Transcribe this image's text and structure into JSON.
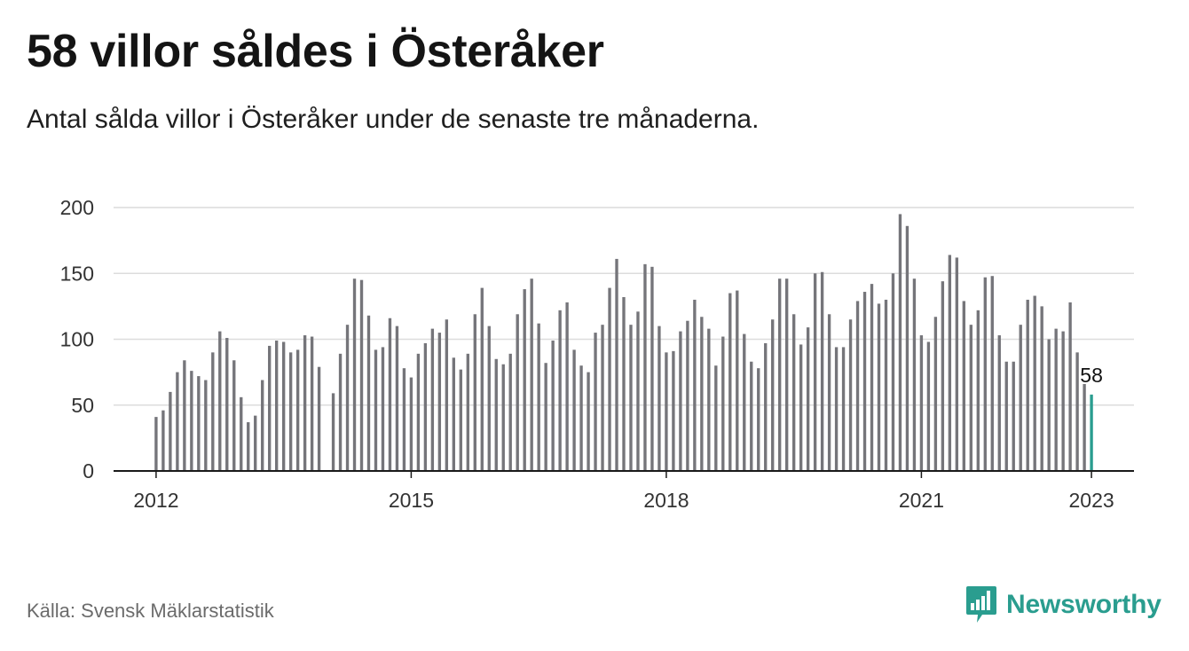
{
  "title": "58 villor såldes i Österåker",
  "subtitle": "Antal sålda villor i Österåker under de senaste tre månaderna.",
  "source": "Källa: Svensk Mäklarstatistik",
  "brand": {
    "name": "Newsworthy",
    "color": "#2a9d8f",
    "icon": "newsworthy-logo-icon"
  },
  "colors": {
    "bar": "#75757a",
    "highlight": "#2a9d8f",
    "grid": "#dcdcdc",
    "axis": "#1a1a1a"
  },
  "chart_data": {
    "type": "bar",
    "x_start": "2012-01",
    "frequency": "monthly",
    "x_ticks": [
      "2012",
      "2015",
      "2018",
      "2021",
      "2023"
    ],
    "xlim": [
      "2011-07",
      "2023-07"
    ],
    "y_ticks": [
      0,
      50,
      100,
      150,
      200
    ],
    "ylim": [
      0,
      200
    ],
    "grid": true,
    "highlight": {
      "x": "2023-01",
      "value": 58,
      "label": "58"
    },
    "values": [
      41,
      46,
      60,
      75,
      84,
      76,
      72,
      69,
      90,
      106,
      101,
      84,
      56,
      37,
      42,
      69,
      95,
      99,
      98,
      90,
      92,
      103,
      102,
      79,
      0,
      59,
      89,
      111,
      146,
      145,
      118,
      92,
      94,
      116,
      110,
      78,
      71,
      89,
      97,
      108,
      105,
      115,
      86,
      77,
      89,
      119,
      139,
      110,
      85,
      81,
      89,
      119,
      138,
      146,
      112,
      82,
      99,
      122,
      128,
      92,
      80,
      75,
      105,
      111,
      139,
      161,
      132,
      111,
      121,
      157,
      155,
      110,
      90,
      91,
      106,
      114,
      130,
      117,
      108,
      80,
      102,
      135,
      137,
      104,
      83,
      78,
      97,
      115,
      146,
      146,
      119,
      96,
      109,
      150,
      151,
      119,
      94,
      94,
      115,
      129,
      136,
      142,
      127,
      130,
      150,
      195,
      186,
      146,
      103,
      98,
      117,
      144,
      164,
      162,
      129,
      111,
      122,
      147,
      148,
      103,
      83,
      83,
      111,
      130,
      133,
      125,
      100,
      108,
      106,
      128,
      90,
      66,
      58
    ]
  }
}
